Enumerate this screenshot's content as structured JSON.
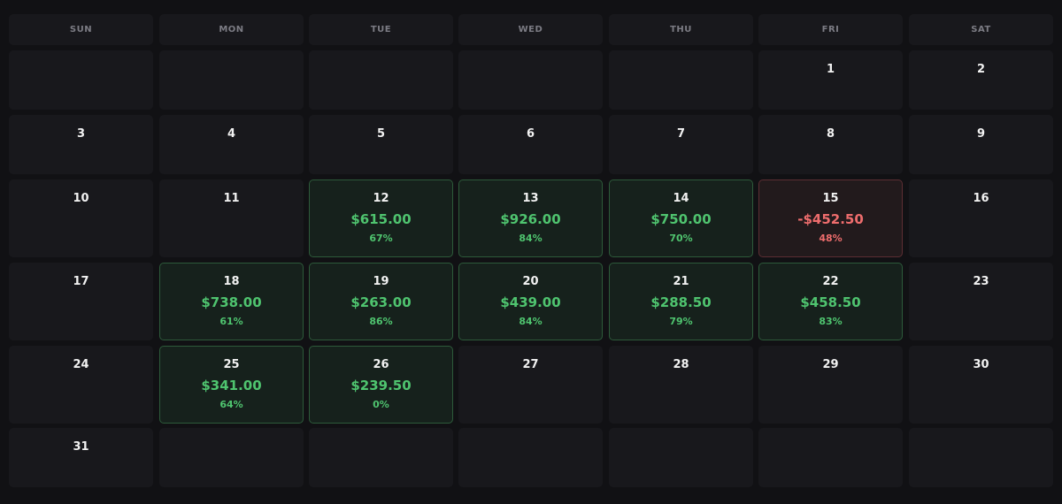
{
  "calendar": {
    "weekdays": [
      "SUN",
      "MON",
      "TUE",
      "WED",
      "THU",
      "FRI",
      "SAT"
    ],
    "weeks": [
      [
        {
          "day": "",
          "status": ""
        },
        {
          "day": "",
          "status": ""
        },
        {
          "day": "",
          "status": ""
        },
        {
          "day": "",
          "status": ""
        },
        {
          "day": "",
          "status": ""
        },
        {
          "day": "1",
          "status": ""
        },
        {
          "day": "2",
          "status": ""
        }
      ],
      [
        {
          "day": "3",
          "status": ""
        },
        {
          "day": "4",
          "status": ""
        },
        {
          "day": "5",
          "status": ""
        },
        {
          "day": "6",
          "status": ""
        },
        {
          "day": "7",
          "status": ""
        },
        {
          "day": "8",
          "status": ""
        },
        {
          "day": "9",
          "status": ""
        }
      ],
      [
        {
          "day": "10",
          "status": ""
        },
        {
          "day": "11",
          "status": ""
        },
        {
          "day": "12",
          "amount": "$615.00",
          "percent": "67%",
          "status": "gain"
        },
        {
          "day": "13",
          "amount": "$926.00",
          "percent": "84%",
          "status": "gain"
        },
        {
          "day": "14",
          "amount": "$750.00",
          "percent": "70%",
          "status": "gain"
        },
        {
          "day": "15",
          "amount": "-$452.50",
          "percent": "48%",
          "status": "loss"
        },
        {
          "day": "16",
          "status": ""
        }
      ],
      [
        {
          "day": "17",
          "status": ""
        },
        {
          "day": "18",
          "amount": "$738.00",
          "percent": "61%",
          "status": "gain"
        },
        {
          "day": "19",
          "amount": "$263.00",
          "percent": "86%",
          "status": "gain"
        },
        {
          "day": "20",
          "amount": "$439.00",
          "percent": "84%",
          "status": "gain"
        },
        {
          "day": "21",
          "amount": "$288.50",
          "percent": "79%",
          "status": "gain"
        },
        {
          "day": "22",
          "amount": "$458.50",
          "percent": "83%",
          "status": "gain"
        },
        {
          "day": "23",
          "status": ""
        }
      ],
      [
        {
          "day": "24",
          "status": ""
        },
        {
          "day": "25",
          "amount": "$341.00",
          "percent": "64%",
          "status": "gain"
        },
        {
          "day": "26",
          "amount": "$239.50",
          "percent": "0%",
          "status": "gain"
        },
        {
          "day": "27",
          "status": ""
        },
        {
          "day": "28",
          "status": ""
        },
        {
          "day": "29",
          "status": ""
        },
        {
          "day": "30",
          "status": ""
        }
      ],
      [
        {
          "day": "31",
          "status": ""
        },
        {
          "day": "",
          "status": ""
        },
        {
          "day": "",
          "status": ""
        },
        {
          "day": "",
          "status": ""
        },
        {
          "day": "",
          "status": ""
        },
        {
          "day": "",
          "status": ""
        },
        {
          "day": "",
          "status": ""
        }
      ]
    ]
  },
  "colors": {
    "background": "#111114",
    "cell": "#18181c",
    "gain": "#4fc46f",
    "loss": "#ee6d6d"
  }
}
